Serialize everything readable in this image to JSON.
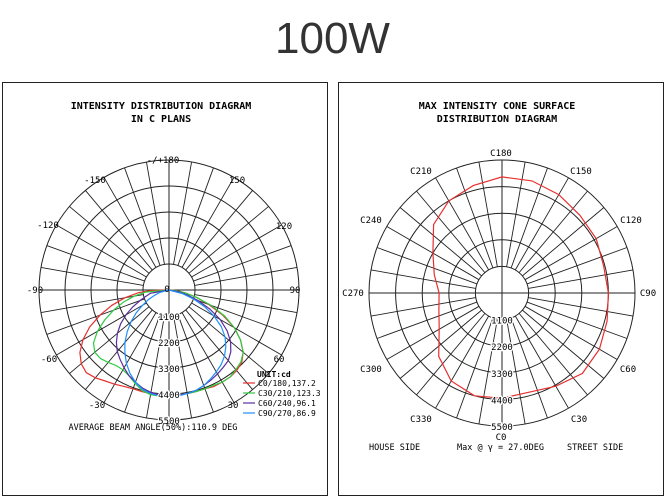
{
  "page_title": "100W",
  "colors": {
    "grid": "#222222",
    "c0": "#e8302e",
    "c30": "#2ecc40",
    "c60": "#5a2d9c",
    "c90": "#1e90ff",
    "cone": "#e83030"
  },
  "chart_data": [
    {
      "type": "polar-line",
      "title": "INTENSITY DISTRIBUTION DIAGRAM",
      "subtitle": "IN C PLANS",
      "angle_labels": [
        "-/+180",
        "-150",
        "150",
        "-120",
        "120",
        "-90",
        "90",
        "-60",
        "60",
        "-30",
        "30",
        "0"
      ],
      "radial_labels": [
        "1100",
        "2200",
        "3300",
        "4400",
        "5500"
      ],
      "radial_max": 5500,
      "unit_label": "UNIT:cd",
      "series": [
        {
          "name": "C0/180,137.2",
          "color": "#e8302e",
          "points": [
            [
              -88,
              800
            ],
            [
              -85,
              1300
            ],
            [
              -80,
              1900
            ],
            [
              -75,
              2500
            ],
            [
              -70,
              3100
            ],
            [
              -65,
              3700
            ],
            [
              -60,
              4200
            ],
            [
              -55,
              4600
            ],
            [
              -50,
              4850
            ],
            [
              -45,
              4950
            ],
            [
              -40,
              4850
            ],
            [
              -35,
              4700
            ],
            [
              -30,
              4600
            ],
            [
              -25,
              4500
            ],
            [
              -20,
              4450
            ],
            [
              -15,
              4450
            ],
            [
              -10,
              4450
            ],
            [
              -5,
              4450
            ],
            [
              0,
              4450
            ],
            [
              5,
              4450
            ],
            [
              10,
              4450
            ],
            [
              15,
              4450
            ],
            [
              20,
              4450
            ],
            [
              25,
              4500
            ],
            [
              30,
              4500
            ],
            [
              35,
              4500
            ],
            [
              40,
              4450
            ],
            [
              45,
              4350
            ],
            [
              50,
              4100
            ],
            [
              55,
              3700
            ],
            [
              60,
              3200
            ],
            [
              65,
              2500
            ],
            [
              70,
              1800
            ],
            [
              75,
              1200
            ],
            [
              80,
              700
            ],
            [
              85,
              350
            ],
            [
              88,
              150
            ]
          ]
        },
        {
          "name": "C30/210,123.3",
          "color": "#2ecc40",
          "points": [
            [
              -85,
              1000
            ],
            [
              -80,
              1500
            ],
            [
              -75,
              2000
            ],
            [
              -70,
              2500
            ],
            [
              -65,
              3000
            ],
            [
              -60,
              3500
            ],
            [
              -55,
              3900
            ],
            [
              -50,
              4100
            ],
            [
              -45,
              4100
            ],
            [
              -40,
              4000
            ],
            [
              -35,
              3900
            ],
            [
              -30,
              3900
            ],
            [
              -25,
              4000
            ],
            [
              -20,
              4200
            ],
            [
              -15,
              4400
            ],
            [
              -10,
              4500
            ],
            [
              -5,
              4500
            ],
            [
              0,
              4450
            ],
            [
              5,
              4450
            ],
            [
              10,
              4450
            ],
            [
              15,
              4450
            ],
            [
              20,
              4450
            ],
            [
              25,
              4450
            ],
            [
              30,
              4500
            ],
            [
              35,
              4500
            ],
            [
              40,
              4400
            ],
            [
              45,
              4300
            ],
            [
              50,
              4100
            ],
            [
              55,
              3700
            ],
            [
              60,
              3200
            ],
            [
              65,
              2600
            ],
            [
              70,
              1900
            ],
            [
              75,
              1200
            ],
            [
              80,
              700
            ],
            [
              85,
              300
            ]
          ]
        },
        {
          "name": "C60/240,96.1",
          "color": "#5a2d9c",
          "points": [
            [
              -80,
              800
            ],
            [
              -75,
              1000
            ],
            [
              -70,
              1300
            ],
            [
              -65,
              1700
            ],
            [
              -60,
              2100
            ],
            [
              -55,
              2500
            ],
            [
              -50,
              2850
            ],
            [
              -45,
              3150
            ],
            [
              -40,
              3400
            ],
            [
              -35,
              3600
            ],
            [
              -30,
              3800
            ],
            [
              -25,
              4000
            ],
            [
              -20,
              4150
            ],
            [
              -15,
              4300
            ],
            [
              -10,
              4400
            ],
            [
              -5,
              4450
            ],
            [
              0,
              4450
            ],
            [
              5,
              4450
            ],
            [
              10,
              4450
            ],
            [
              15,
              4400
            ],
            [
              20,
              4300
            ],
            [
              25,
              4200
            ],
            [
              30,
              4100
            ],
            [
              35,
              4000
            ],
            [
              40,
              3900
            ],
            [
              45,
              3700
            ],
            [
              50,
              3400
            ],
            [
              55,
              3000
            ],
            [
              60,
              2500
            ],
            [
              65,
              1900
            ],
            [
              70,
              1300
            ],
            [
              75,
              800
            ],
            [
              80,
              400
            ]
          ]
        },
        {
          "name": "C90/270,86.9",
          "color": "#1e90ff",
          "points": [
            [
              -75,
              400
            ],
            [
              -70,
              650
            ],
            [
              -65,
              950
            ],
            [
              -60,
              1300
            ],
            [
              -55,
              1700
            ],
            [
              -50,
              2100
            ],
            [
              -45,
              2500
            ],
            [
              -40,
              2900
            ],
            [
              -35,
              3250
            ],
            [
              -30,
              3600
            ],
            [
              -25,
              3900
            ],
            [
              -20,
              4150
            ],
            [
              -15,
              4350
            ],
            [
              -10,
              4450
            ],
            [
              -5,
              4500
            ],
            [
              0,
              4500
            ],
            [
              5,
              4500
            ],
            [
              10,
              4450
            ],
            [
              15,
              4400
            ],
            [
              20,
              4300
            ],
            [
              25,
              4150
            ],
            [
              30,
              4000
            ],
            [
              35,
              3850
            ],
            [
              40,
              3650
            ],
            [
              45,
              3400
            ],
            [
              50,
              3100
            ],
            [
              55,
              2700
            ],
            [
              60,
              2200
            ],
            [
              65,
              1650
            ],
            [
              70,
              1100
            ],
            [
              75,
              600
            ]
          ]
        }
      ],
      "footer": "AVERAGE BEAM ANGLE(50%):110.9 DEG"
    },
    {
      "type": "polar-line",
      "title": "MAX INTENSITY CONE SURFACE",
      "subtitle": "DISTRIBUTION DIAGRAM",
      "angle_labels": [
        "C180",
        "C150",
        "C210",
        "C120",
        "C240",
        "C270",
        "C90",
        "C300",
        "C60",
        "C330",
        "C30",
        "C0"
      ],
      "radial_labels": [
        "1100",
        "2200",
        "3300",
        "4400",
        "5500"
      ],
      "radial_max": 5500,
      "series": [
        {
          "color": "#e83030",
          "points": [
            [
              0,
              4350
            ],
            [
              15,
              4250
            ],
            [
              30,
              4450
            ],
            [
              45,
              4700
            ],
            [
              60,
              4650
            ],
            [
              75,
              4500
            ],
            [
              90,
              4400
            ],
            [
              105,
              4350
            ],
            [
              120,
              4500
            ],
            [
              135,
              4550
            ],
            [
              150,
              4700
            ],
            [
              165,
              4800
            ],
            [
              180,
              4800
            ],
            [
              195,
              4600
            ],
            [
              210,
              4400
            ],
            [
              225,
              4000
            ],
            [
              240,
              3300
            ],
            [
              255,
              2900
            ],
            [
              270,
              2600
            ],
            [
              285,
              2700
            ],
            [
              300,
              3000
            ],
            [
              315,
              3700
            ],
            [
              330,
              4200
            ],
            [
              345,
              4400
            ],
            [
              360,
              4350
            ]
          ]
        }
      ],
      "footer_left": "HOUSE SIDE",
      "footer_mid": "Max @ γ = 27.0DEG",
      "footer_right": "STREET SIDE"
    }
  ]
}
